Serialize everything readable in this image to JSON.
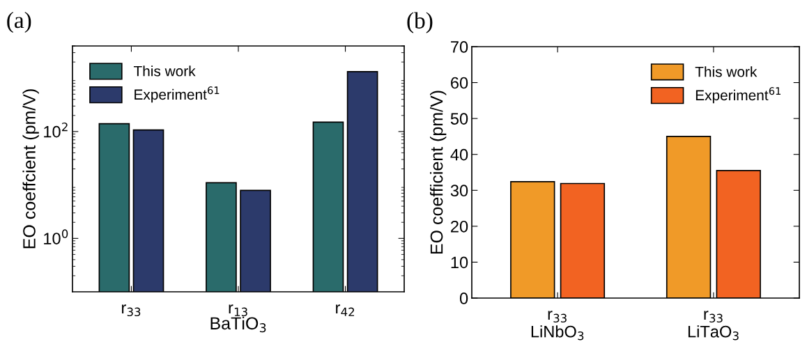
{
  "chart_data": [
    {
      "type": "bar",
      "title": "(a)",
      "xlabel": "BaTiO$_{3}$",
      "ylabel": "EO coeffcient (pm/V)",
      "categories": [
        "r$_{33}$",
        "r$_{13}$",
        "r$_{42}$"
      ],
      "series": [
        {
          "name": "This work",
          "color": "#2a6b6b",
          "values": [
            140,
            11,
            150
          ]
        },
        {
          "name": "Experiment$^{61}$",
          "color": "#2c3a6b",
          "values": [
            107,
            7.9,
            1320
          ]
        }
      ],
      "log": true,
      "ylim": [
        0.1,
        4000
      ],
      "yticks": [
        {
          "value": 1,
          "label": "10$^{0}$"
        },
        {
          "value": 100,
          "label": "10$^{2}$"
        }
      ],
      "legend": "top left",
      "grid": false
    },
    {
      "type": "bar",
      "title": "(b)",
      "ylabel": "EO coefficient (pm/V)",
      "categories": [
        "r$_{33}$\nLiNbO$_{3}$",
        "r$_{33}$\nLiTaO$_{3}$"
      ],
      "series": [
        {
          "name": "This work",
          "color": "#f09a28",
          "values": [
            32.4,
            45
          ]
        },
        {
          "name": "Experiment$^{61}$",
          "color": "#f26322",
          "values": [
            31.9,
            35.5
          ]
        }
      ],
      "ylim": [
        0,
        70
      ],
      "yticks": [
        0,
        10,
        20,
        30,
        40,
        50,
        60,
        70
      ],
      "legend": "top right",
      "grid": false
    }
  ]
}
